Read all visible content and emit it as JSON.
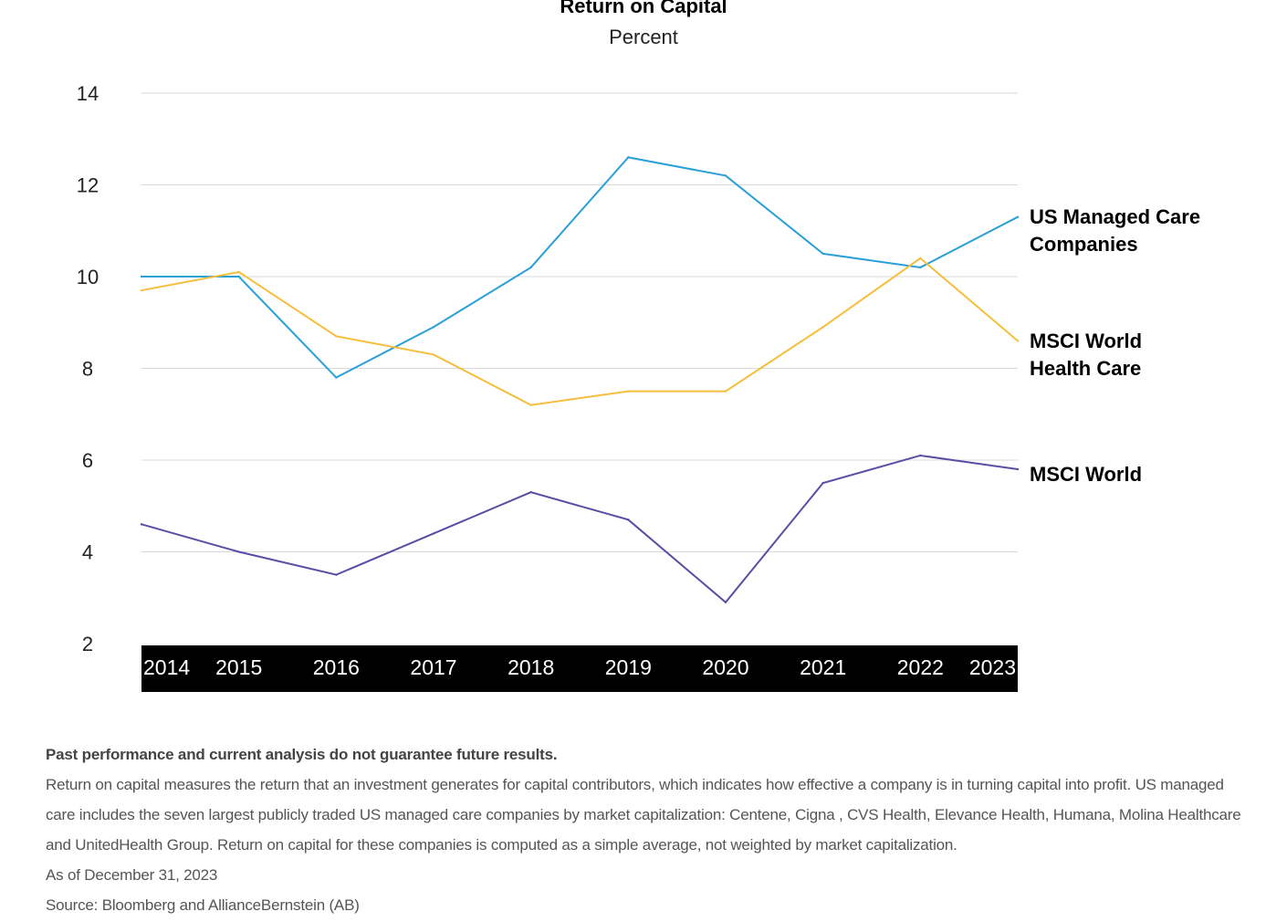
{
  "chart_data": {
    "type": "line",
    "title": "Return on Capital",
    "subtitle": "Percent",
    "categories": [
      "2014",
      "2015",
      "2016",
      "2017",
      "2018",
      "2019",
      "2020",
      "2021",
      "2022",
      "2023"
    ],
    "y_ticks": [
      14,
      12,
      10,
      8,
      6,
      4,
      2
    ],
    "ylim": [
      2,
      14
    ],
    "grid": true,
    "legend_placement": "right, at line ends",
    "series": [
      {
        "name": "US Managed Care Companies",
        "name_lines": [
          "US Managed Care",
          "Companies"
        ],
        "color": "#2a9fd8",
        "values": [
          10.0,
          10.0,
          7.8,
          8.9,
          10.2,
          12.6,
          12.2,
          10.5,
          10.2,
          11.3
        ]
      },
      {
        "name": "MSCI World Health Care",
        "name_lines": [
          "MSCI World",
          "Health Care"
        ],
        "color": "#f6be3d",
        "values": [
          9.7,
          10.1,
          8.7,
          8.3,
          7.2,
          7.5,
          7.5,
          8.9,
          10.4,
          8.6
        ]
      },
      {
        "name": "MSCI World",
        "name_lines": [
          "MSCI World"
        ],
        "color": "#5b4da4",
        "values": [
          4.6,
          4.0,
          3.5,
          4.4,
          5.3,
          4.7,
          2.9,
          5.5,
          6.1,
          5.8
        ]
      }
    ]
  },
  "notes": {
    "disclaimer": "Past performance and current analysis do not guarantee future results.",
    "description": "Return on capital measures the return that an investment generates for capital contributors, which indicates how effective a company is in turning capital into profit. US managed care includes the seven largest publicly traded US managed care companies by market capitalization: Centene, Cigna , CVS Health, Elevance Health, Humana, Molina Healthcare and UnitedHealth Group. Return on capital for these companies is computed as a simple average, not weighted by market capitalization.",
    "as_of": "As of December 31, 2023",
    "source": "Source: Bloomberg and AllianceBernstein (AB)"
  }
}
